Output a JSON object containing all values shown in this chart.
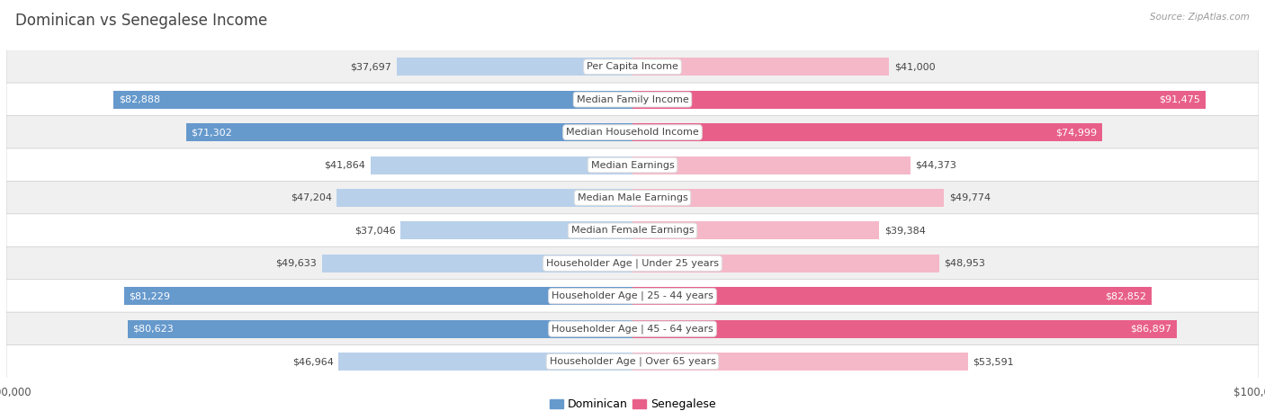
{
  "title": "Dominican vs Senegalese Income",
  "source": "Source: ZipAtlas.com",
  "categories": [
    "Per Capita Income",
    "Median Family Income",
    "Median Household Income",
    "Median Earnings",
    "Median Male Earnings",
    "Median Female Earnings",
    "Householder Age | Under 25 years",
    "Householder Age | 25 - 44 years",
    "Householder Age | 45 - 64 years",
    "Householder Age | Over 65 years"
  ],
  "dominican": [
    37697,
    82888,
    71302,
    41864,
    47204,
    37046,
    49633,
    81229,
    80623,
    46964
  ],
  "senegalese": [
    41000,
    91475,
    74999,
    44373,
    49774,
    39384,
    48953,
    82852,
    86897,
    53591
  ],
  "max_val": 100000,
  "dominican_color_light": "#b8d0ea",
  "dominican_color_dark": "#6699cc",
  "senegalese_color_light": "#f5b8c8",
  "senegalese_color_dark": "#e8608a",
  "bar_height": 0.55,
  "bg_color": "#ffffff",
  "row_bg_even": "#f0f0f0",
  "row_bg_odd": "#ffffff",
  "threshold_dark": 60000,
  "label_fontsize": 8.0,
  "category_fontsize": 8.0,
  "title_fontsize": 12,
  "title_color": "#444444"
}
